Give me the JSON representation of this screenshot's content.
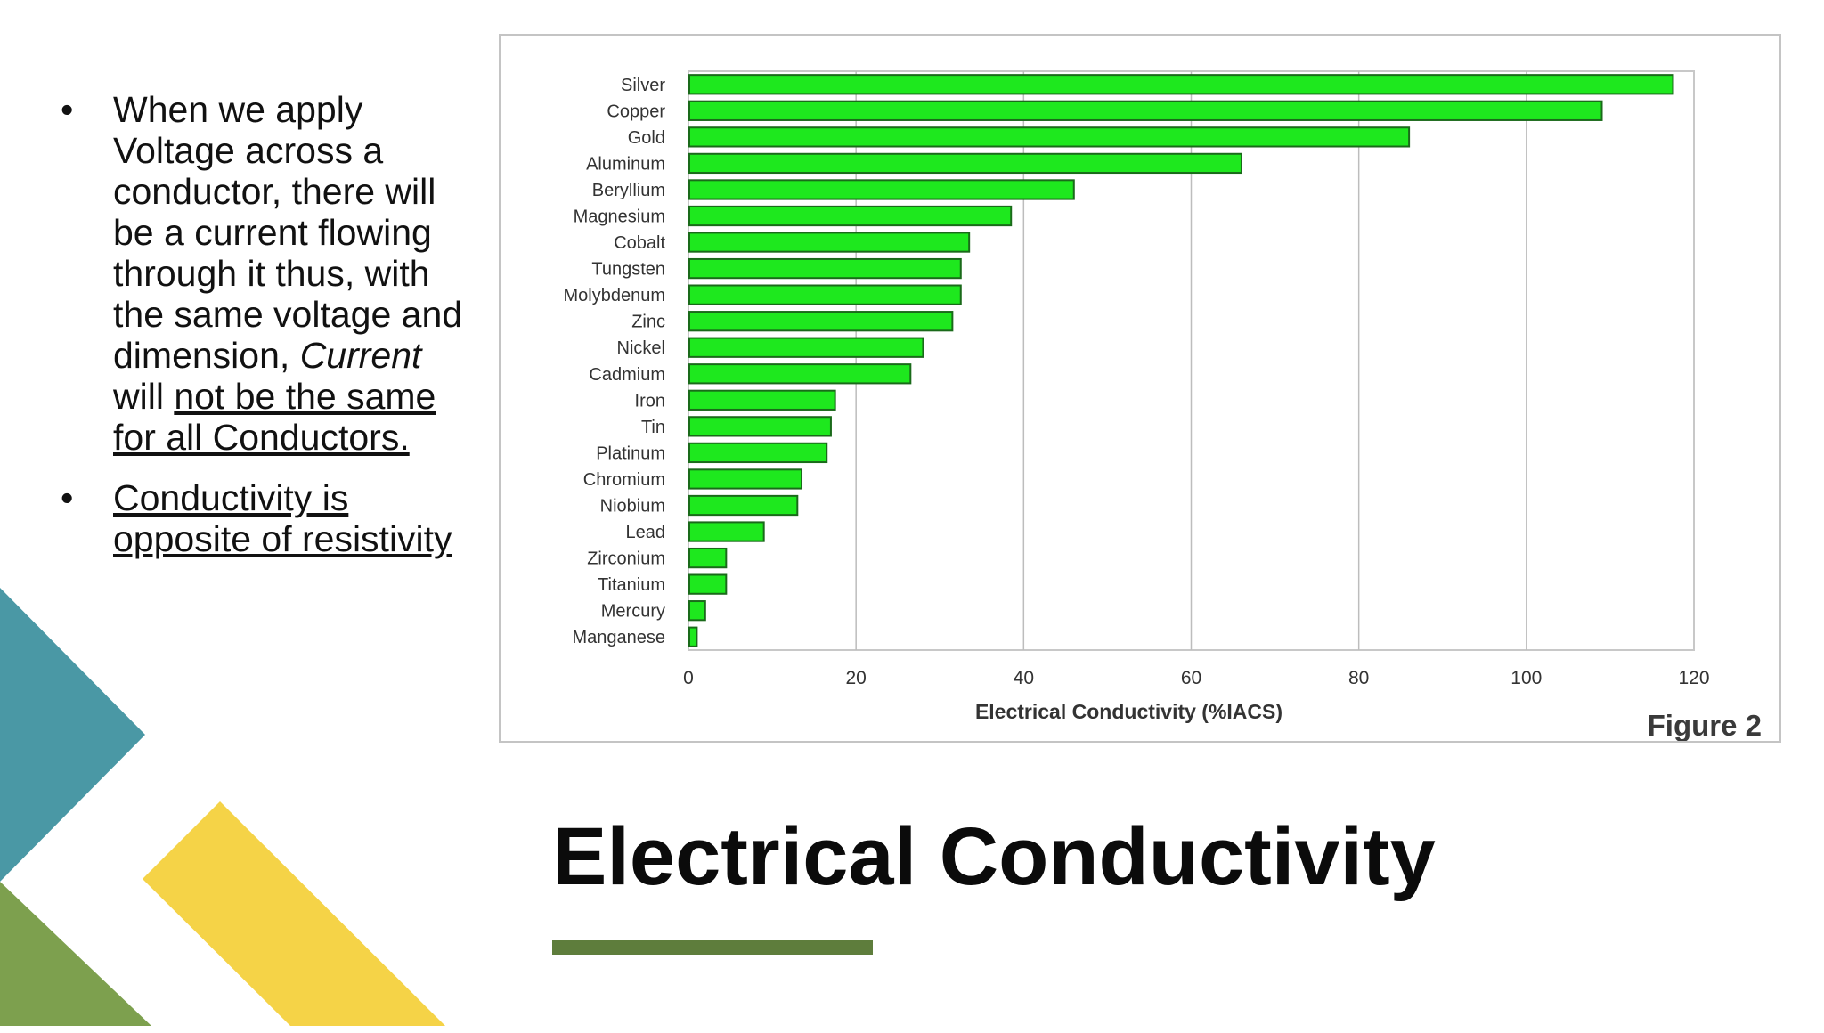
{
  "slide": {
    "title": "Electrical Conductivity",
    "accent_colors": {
      "teal": "#4a98a5",
      "green": "#7da04e",
      "yellow": "#f5d347",
      "rule": "#5e7d3c"
    }
  },
  "bullets": [
    {
      "line_plain": "When we apply Voltage across a conductor, there will be a current flowing through it thus, with the same voltage and dimension,",
      "line_italic": "Current",
      "line_mid": " will ",
      "line_underlined": "not be the same for all Conductors."
    },
    {
      "line_underlined": "Conductivity is opposite of resistivity"
    }
  ],
  "figure_label": "Figure 2",
  "chart_data": {
    "type": "bar",
    "orientation": "horizontal",
    "categories": [
      "Silver",
      "Copper",
      "Gold",
      "Aluminum",
      "Beryllium",
      "Magnesium",
      "Cobalt",
      "Tungsten",
      "Molybdenum",
      "Zinc",
      "Nickel",
      "Cadmium",
      "Iron",
      "Tin",
      "Platinum",
      "Chromium",
      "Niobium",
      "Lead",
      "Zirconium",
      "Titanium",
      "Mercury",
      "Manganese"
    ],
    "values": [
      117.5,
      109,
      86,
      66,
      46,
      38.5,
      33.5,
      32.5,
      32.5,
      31.5,
      28,
      26.5,
      17.5,
      17,
      16.5,
      13.5,
      13,
      9,
      4.5,
      4.5,
      2,
      1
    ],
    "xlabel": "Electrical Conductivity (%IACS)",
    "ylabel": "",
    "xlim": [
      0,
      120
    ],
    "xticks": [
      0,
      20,
      40,
      60,
      80,
      100,
      120
    ],
    "grid": "vertical",
    "bar_color": "#1ee81e",
    "bar_edge": "#1a6a1a"
  }
}
